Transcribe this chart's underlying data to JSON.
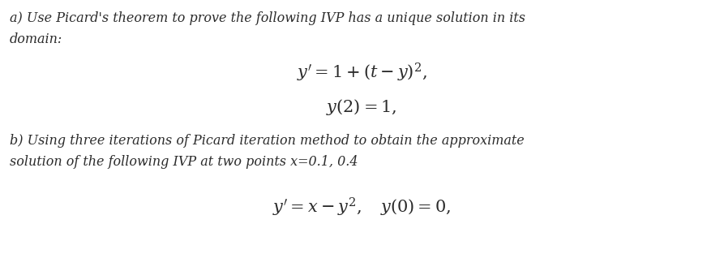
{
  "background_color": "#ffffff",
  "fig_width": 8.93,
  "fig_height": 3.13,
  "dpi": 100,
  "text_color": "#2b2b2b",
  "part_a_line1": "a) Use Picard's theorem to prove the following IVP has a unique solution in its",
  "part_a_line2": "domain:",
  "eq_a1": "$y' = 1 + (t - y)^2,$",
  "eq_a2": "$y(2) = 1,$",
  "part_b_line1": "b) Using three iterations of Picard iteration method to obtain the approximate",
  "part_b_line2": "solution of the following IVP at two points x=0.1, 0.4",
  "eq_b1": "$y'  =  x - y^2, \\quad y(0)  =  0,$",
  "font_size_text": 11.5,
  "font_size_eq": 15
}
